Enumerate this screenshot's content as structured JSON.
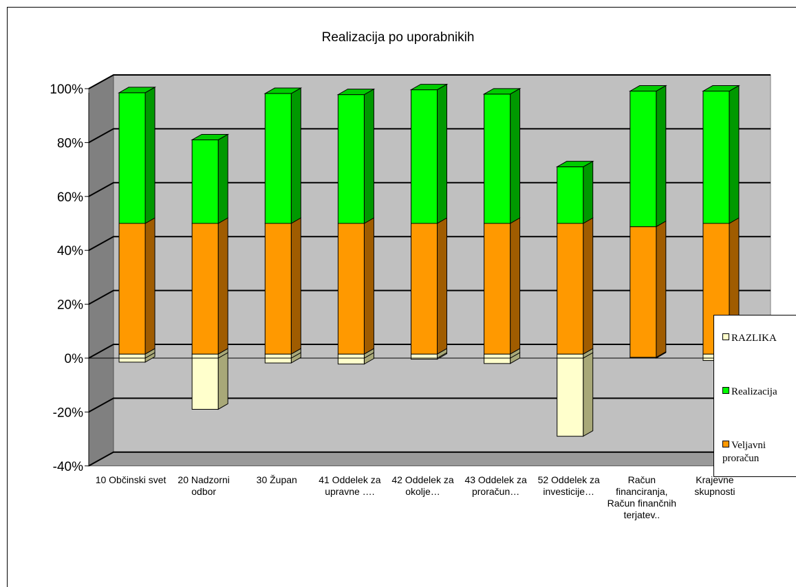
{
  "chart_data": {
    "type": "bar",
    "stacked": true,
    "normalized_percent": true,
    "title": "Realizacija po uporabnikih",
    "xlabel": "",
    "ylabel": "",
    "ylim": [
      -40,
      100
    ],
    "yticks": [
      "100%",
      "80%",
      "60%",
      "40%",
      "20%",
      "0%",
      "-20%",
      "-40%"
    ],
    "grid": true,
    "legend_position": "right",
    "categories": [
      "10 Občinski svet",
      "20 Nadzorni odbor",
      "30 Župan",
      "41 Oddelek za upravne ….",
      "42 Oddelek za okolje…",
      "43 Oddelek za proračun…",
      "52 Oddelek za investicije…",
      "Račun financiranja, Račun finančnih terjatev..",
      "Krajevne skupnosti"
    ],
    "series": [
      {
        "name": "RAZLIKA",
        "color": "#ffffcc",
        "values": [
          -1.5,
          -19,
          -1.8,
          -2.2,
          -0.4,
          -2.0,
          -29,
          0.3,
          -0.9
        ]
      },
      {
        "name": "Realizacija",
        "color": "#00ff00",
        "values": [
          48.5,
          31,
          48.2,
          47.8,
          49.6,
          48.0,
          21,
          50.3,
          49.1
        ]
      },
      {
        "name": "Veljavni proračun",
        "color": "#ff9900",
        "values": [
          50,
          50,
          50,
          50,
          50,
          50,
          50,
          50,
          50
        ]
      }
    ]
  }
}
